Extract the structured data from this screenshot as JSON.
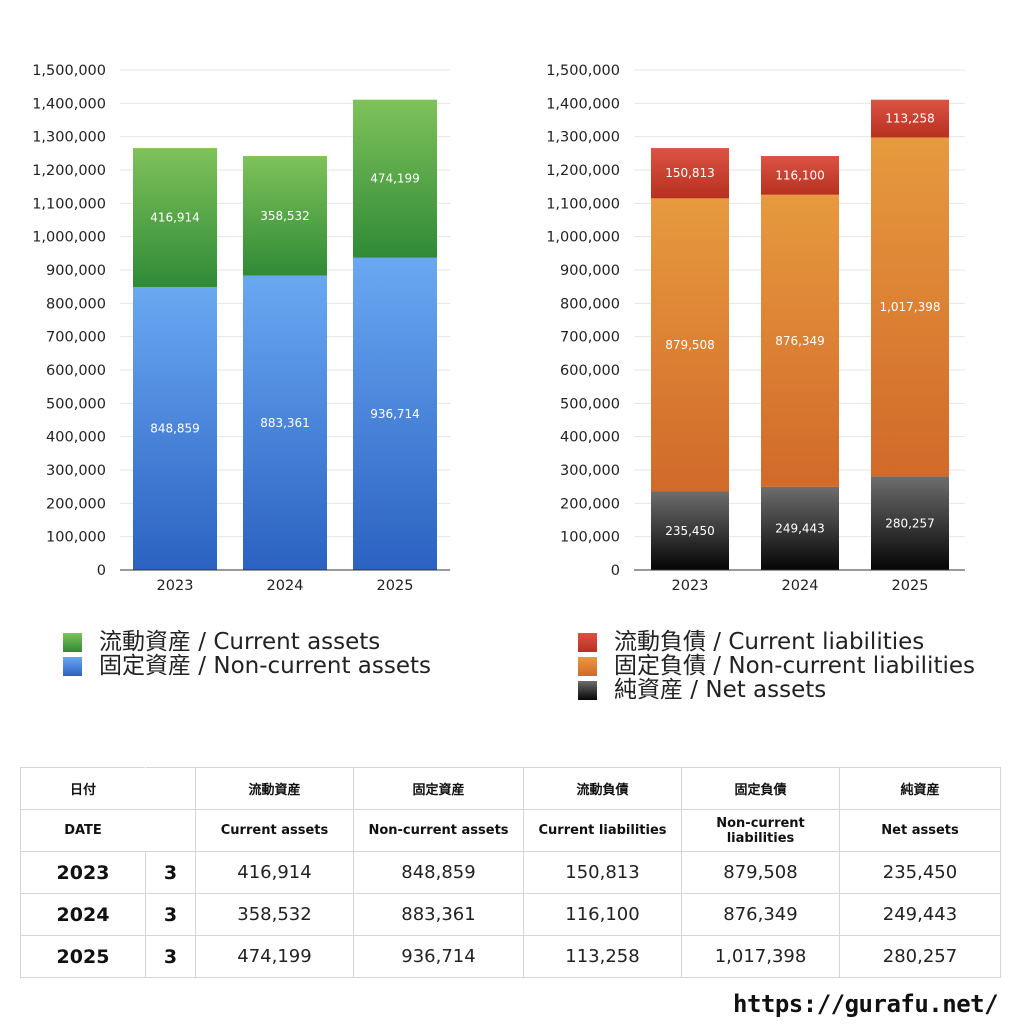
{
  "chart_data": [
    {
      "type": "bar",
      "stacked": true,
      "categories": [
        "2023",
        "2024",
        "2025"
      ],
      "series": [
        {
          "name": "固定資産 / Non-current assets",
          "values": [
            848859,
            883361,
            936714
          ],
          "color_top": "#6aa8f2",
          "color_bottom": "#2b62c2"
        },
        {
          "name": "流動資産 / Current assets",
          "values": [
            416914,
            358532,
            474199
          ],
          "color_top": "#7fc25a",
          "color_bottom": "#2f8a36"
        }
      ],
      "ylim": [
        0,
        1500000
      ],
      "yticks": [
        0,
        100000,
        200000,
        300000,
        400000,
        500000,
        600000,
        700000,
        800000,
        900000,
        1000000,
        1100000,
        1200000,
        1300000,
        1400000,
        1500000
      ],
      "ytick_labels": [
        "0",
        "100,000",
        "200,000",
        "300,000",
        "400,000",
        "500,000",
        "600,000",
        "700,000",
        "800,000",
        "900,000",
        "1,000,000",
        "1,100,000",
        "1,200,000",
        "1,300,000",
        "1,400,000",
        "1,500,000"
      ],
      "grid": true,
      "legend_position": "bottom"
    },
    {
      "type": "bar",
      "stacked": true,
      "categories": [
        "2023",
        "2024",
        "2025"
      ],
      "series": [
        {
          "name": "純資産 / Net assets",
          "values": [
            235450,
            249443,
            280257
          ],
          "color_top": "#6d6d6d",
          "color_bottom": "#050505"
        },
        {
          "name": "固定負債 / Non-current liabilities",
          "values": [
            879508,
            876349,
            1017398
          ],
          "color_top": "#e79a3e",
          "color_bottom": "#d1692a"
        },
        {
          "name": "流動負債 / Current liabilities",
          "values": [
            150813,
            116100,
            113258
          ],
          "color_top": "#dc5344",
          "color_bottom": "#b8301f"
        }
      ],
      "ylim": [
        0,
        1500000
      ],
      "yticks": [
        0,
        100000,
        200000,
        300000,
        400000,
        500000,
        600000,
        700000,
        800000,
        900000,
        1000000,
        1100000,
        1200000,
        1300000,
        1400000,
        1500000
      ],
      "ytick_labels": [
        "0",
        "100,000",
        "200,000",
        "300,000",
        "400,000",
        "500,000",
        "600,000",
        "700,000",
        "800,000",
        "900,000",
        "1,000,000",
        "1,100,000",
        "1,200,000",
        "1,300,000",
        "1,400,000",
        "1,500,000"
      ],
      "grid": true,
      "legend_position": "bottom"
    }
  ],
  "legends": {
    "assets": [
      {
        "label": "流動資産 / Current assets",
        "color": "#4e9e3c"
      },
      {
        "label": "固定資産 / Non-current assets",
        "color": "#3f7fdc"
      }
    ],
    "liabilities": [
      {
        "label": "流動負債 / Current liabilities",
        "color": "#d2483a"
      },
      {
        "label": "固定負債 / Non-current liabilities",
        "color": "#e08a36"
      },
      {
        "label": "純資産 / Net assets",
        "color": "#222222"
      }
    ]
  },
  "table": {
    "header_jp": {
      "date": "日付",
      "current_assets": "流動資産",
      "noncurrent_assets": "固定資産",
      "current_liabilities": "流動負債",
      "noncurrent_liabilities": "固定負債",
      "net_assets": "純資産"
    },
    "header_en": {
      "date": "DATE",
      "current_assets": "Current assets",
      "noncurrent_assets": "Non-current assets",
      "current_liabilities": "Current liabilities",
      "noncurrent_liabilities": "Non-current liabilities",
      "net_assets": "Net assets"
    },
    "rows": [
      {
        "year": "2023",
        "month": "3",
        "current_assets": "416,914",
        "noncurrent_assets": "848,859",
        "current_liabilities": "150,813",
        "noncurrent_liabilities": "879,508",
        "net_assets": "235,450"
      },
      {
        "year": "2024",
        "month": "3",
        "current_assets": "358,532",
        "noncurrent_assets": "883,361",
        "current_liabilities": "116,100",
        "noncurrent_liabilities": "876,349",
        "net_assets": "249,443"
      },
      {
        "year": "2025",
        "month": "3",
        "current_assets": "474,199",
        "noncurrent_assets": "936,714",
        "current_liabilities": "113,258",
        "noncurrent_liabilities": "1,017,398",
        "net_assets": "280,257"
      }
    ]
  },
  "footer": {
    "url": "https://gurafu.net/"
  }
}
